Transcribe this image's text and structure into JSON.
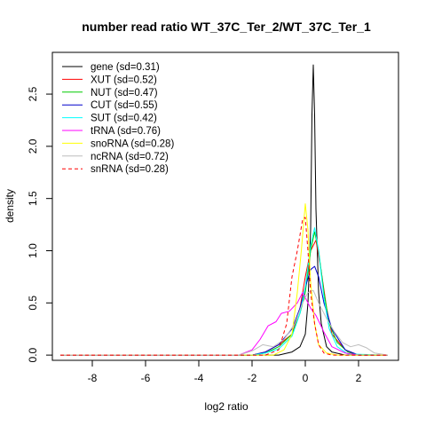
{
  "chart_data": {
    "type": "line",
    "title": "number read ratio WT_37C_Ter_2/WT_37C_Ter_1",
    "xlabel": "log2 ratio",
    "ylabel": "density",
    "xlim": [
      -9.5,
      3.5
    ],
    "ylim": [
      -0.05,
      2.9
    ],
    "xticks": [
      -8,
      -6,
      -4,
      -2,
      0,
      2
    ],
    "yticks": [
      0.0,
      0.5,
      1.0,
      1.5,
      2.0,
      2.5
    ],
    "xtick_labels": [
      "-8",
      "-6",
      "-4",
      "-2",
      "0",
      "2"
    ],
    "ytick_labels": [
      "0.0",
      "0.5",
      "1.0",
      "1.5",
      "2.0",
      "2.5"
    ],
    "legend_position": "top-left",
    "series": [
      {
        "name": "gene (sd=0.31)",
        "color": "#000000",
        "dash": "solid",
        "x": [
          -9.2,
          -1.0,
          -0.5,
          -0.2,
          0.0,
          0.1,
          0.2,
          0.25,
          0.3,
          0.35,
          0.4,
          0.5,
          0.6,
          0.8,
          1.0,
          1.5,
          3.1
        ],
        "y": [
          0,
          0,
          0.03,
          0.08,
          0.2,
          0.5,
          1.2,
          2.3,
          2.78,
          2.3,
          1.4,
          0.6,
          0.3,
          0.08,
          0.03,
          0,
          0
        ]
      },
      {
        "name": "XUT (sd=0.52)",
        "color": "#ff0000",
        "dash": "solid",
        "x": [
          -9.2,
          -2.0,
          -1.5,
          -1.0,
          -0.5,
          -0.2,
          0.0,
          0.2,
          0.4,
          0.6,
          0.8,
          1.0,
          1.5,
          2.0,
          3.1
        ],
        "y": [
          0,
          0,
          0.03,
          0.1,
          0.2,
          0.45,
          0.75,
          1.0,
          1.1,
          0.8,
          0.45,
          0.2,
          0.05,
          0,
          0
        ]
      },
      {
        "name": "NUT (sd=0.47)",
        "color": "#00cc00",
        "dash": "solid",
        "x": [
          -9.2,
          -2.0,
          -1.5,
          -1.0,
          -0.5,
          -0.2,
          0.0,
          0.2,
          0.35,
          0.5,
          0.7,
          0.9,
          1.2,
          1.6,
          2.0,
          3.1
        ],
        "y": [
          0,
          0,
          0.02,
          0.08,
          0.2,
          0.4,
          0.6,
          1.0,
          1.18,
          1.0,
          0.6,
          0.3,
          0.12,
          0.03,
          0,
          0
        ]
      },
      {
        "name": "CUT (sd=0.55)",
        "color": "#0000cc",
        "dash": "solid",
        "x": [
          -9.2,
          -2.0,
          -1.5,
          -1.0,
          -0.5,
          -0.2,
          0.0,
          0.2,
          0.35,
          0.5,
          0.7,
          1.0,
          1.5,
          2.0,
          3.1
        ],
        "y": [
          0,
          0,
          0.03,
          0.1,
          0.25,
          0.45,
          0.65,
          0.82,
          0.85,
          0.75,
          0.5,
          0.25,
          0.05,
          0,
          0
        ]
      },
      {
        "name": "SUT (sd=0.42)",
        "color": "#00ffff",
        "dash": "solid",
        "x": [
          -9.2,
          -2.0,
          -1.5,
          -1.0,
          -0.5,
          -0.2,
          0.0,
          0.2,
          0.35,
          0.5,
          0.7,
          0.9,
          1.2,
          1.6,
          3.1
        ],
        "y": [
          0,
          0,
          0.02,
          0.06,
          0.18,
          0.4,
          0.65,
          1.05,
          1.22,
          1.0,
          0.55,
          0.25,
          0.08,
          0.01,
          0
        ]
      },
      {
        "name": "tRNA (sd=0.76)",
        "color": "#ff00ff",
        "dash": "solid",
        "x": [
          -9.2,
          -2.5,
          -2.0,
          -1.7,
          -1.4,
          -1.1,
          -0.9,
          -0.6,
          -0.3,
          -0.1,
          0.0,
          0.2,
          0.4,
          0.7,
          1.0,
          1.5,
          2.0,
          3.1
        ],
        "y": [
          0,
          0,
          0.05,
          0.15,
          0.28,
          0.32,
          0.4,
          0.42,
          0.5,
          0.6,
          0.55,
          0.45,
          0.38,
          0.22,
          0.08,
          0.02,
          0,
          0
        ]
      },
      {
        "name": "snoRNA (sd=0.28)",
        "color": "#ffff00",
        "dash": "solid",
        "x": [
          -9.2,
          -1.2,
          -0.8,
          -0.5,
          -0.3,
          -0.15,
          0.0,
          0.1,
          0.2,
          0.35,
          0.5,
          0.8,
          1.2,
          3.1
        ],
        "y": [
          0,
          0,
          0.05,
          0.2,
          0.6,
          1.0,
          1.45,
          1.2,
          0.7,
          0.3,
          0.1,
          0.02,
          0,
          0
        ]
      },
      {
        "name": "ncRNA (sd=0.72)",
        "color": "#bebebe",
        "dash": "solid",
        "x": [
          -9.2,
          -2.5,
          -2.0,
          -1.6,
          -1.2,
          -0.8,
          -0.4,
          -0.1,
          0.1,
          0.3,
          0.5,
          0.8,
          1.1,
          1.4,
          1.7,
          2.0,
          2.3,
          2.6,
          3.1
        ],
        "y": [
          0,
          0,
          0.04,
          0.1,
          0.08,
          0.15,
          0.3,
          0.5,
          0.6,
          0.62,
          0.5,
          0.35,
          0.22,
          0.12,
          0.08,
          0.1,
          0.07,
          0.02,
          0
        ]
      },
      {
        "name": "snRNA (sd=0.28)",
        "color": "#ff0000",
        "dash": "dashed",
        "x": [
          -9.2,
          -1.5,
          -1.0,
          -0.7,
          -0.5,
          -0.3,
          -0.1,
          0.0,
          0.1,
          0.2,
          0.35,
          0.5,
          0.7,
          1.0,
          3.1
        ],
        "y": [
          0,
          0,
          0.05,
          0.3,
          0.75,
          1.0,
          1.3,
          1.32,
          1.0,
          0.6,
          0.3,
          0.1,
          0.02,
          0,
          0
        ]
      }
    ]
  }
}
